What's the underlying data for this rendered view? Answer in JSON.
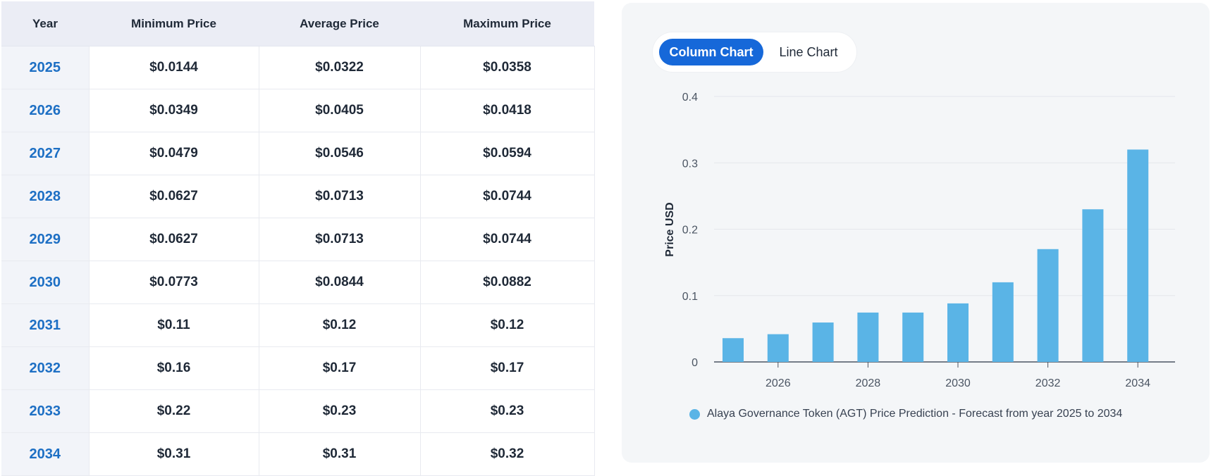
{
  "table": {
    "headers": [
      "Year",
      "Minimum Price",
      "Average Price",
      "Maximum Price"
    ],
    "rows": [
      [
        "2025",
        "$0.0144",
        "$0.0322",
        "$0.0358"
      ],
      [
        "2026",
        "$0.0349",
        "$0.0405",
        "$0.0418"
      ],
      [
        "2027",
        "$0.0479",
        "$0.0546",
        "$0.0594"
      ],
      [
        "2028",
        "$0.0627",
        "$0.0713",
        "$0.0744"
      ],
      [
        "2029",
        "$0.0627",
        "$0.0713",
        "$0.0744"
      ],
      [
        "2030",
        "$0.0773",
        "$0.0844",
        "$0.0882"
      ],
      [
        "2031",
        "$0.11",
        "$0.12",
        "$0.12"
      ],
      [
        "2032",
        "$0.16",
        "$0.17",
        "$0.17"
      ],
      [
        "2033",
        "$0.22",
        "$0.23",
        "$0.23"
      ],
      [
        "2034",
        "$0.31",
        "$0.31",
        "$0.32"
      ]
    ]
  },
  "toggle": {
    "column_label": "Column Chart",
    "line_label": "Line Chart",
    "active": "column"
  },
  "chart_data": {
    "type": "bar",
    "categories": [
      "2025",
      "2026",
      "2027",
      "2028",
      "2029",
      "2030",
      "2031",
      "2032",
      "2033",
      "2034"
    ],
    "series": [
      {
        "name": "Alaya Governance Token (AGT) Price Prediction - Forecast from year 2025 to 2034",
        "values": [
          0.0358,
          0.0418,
          0.0594,
          0.0744,
          0.0744,
          0.0882,
          0.12,
          0.17,
          0.23,
          0.32
        ]
      }
    ],
    "ylabel": "Price USD",
    "ylim": [
      0,
      0.4
    ],
    "yticks": [
      "0",
      "0.1",
      "0.2",
      "0.3",
      "0.4"
    ],
    "xtick_labels": [
      "2026",
      "2028",
      "2030",
      "2032",
      "2034"
    ],
    "grid": true,
    "legend_position": "bottom",
    "bar_color": "#5ab4e6"
  }
}
